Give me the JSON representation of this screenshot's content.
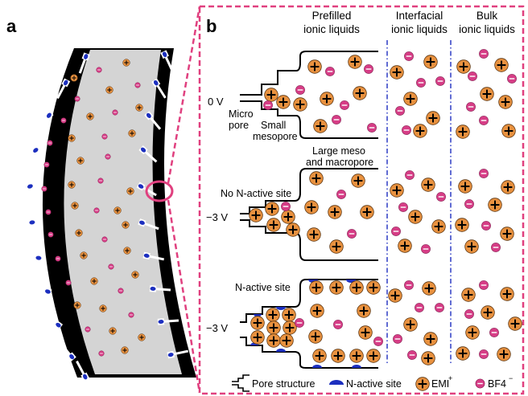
{
  "panel_a": {
    "letter": "a"
  },
  "panel_b": {
    "letter": "b"
  },
  "headers": {
    "prefilled": [
      "Prefilled",
      "ionic liquids"
    ],
    "interfacial": [
      "Interfacial",
      "ionic liquids"
    ],
    "bulk": [
      "Bulk",
      "ionic liquids"
    ]
  },
  "row1": {
    "voltage": "0 V",
    "micro_pore": [
      "Micro",
      "pore"
    ],
    "small_mesopore": [
      "Small",
      "mesopore"
    ],
    "large_pore": [
      "Large meso",
      "and macropore"
    ]
  },
  "row2": {
    "voltage": "−3 V",
    "site_label": "No N-active site"
  },
  "row3": {
    "voltage": "−3 V",
    "site_label": "N-active site"
  },
  "legend": {
    "pore_structure": "Pore structure",
    "n_active_site": "N-active site",
    "emi": "EMI",
    "emi_sup": "+",
    "bf4": "BF4",
    "bf4_sup": "−"
  },
  "colors": {
    "cation": "#e8913f",
    "anion": "#d63d86",
    "accent_dash": "#e0407f",
    "interface_line": "#3a48c8",
    "n_site": "#1c2fbf",
    "electrode_gray": "#d4d4d4"
  }
}
